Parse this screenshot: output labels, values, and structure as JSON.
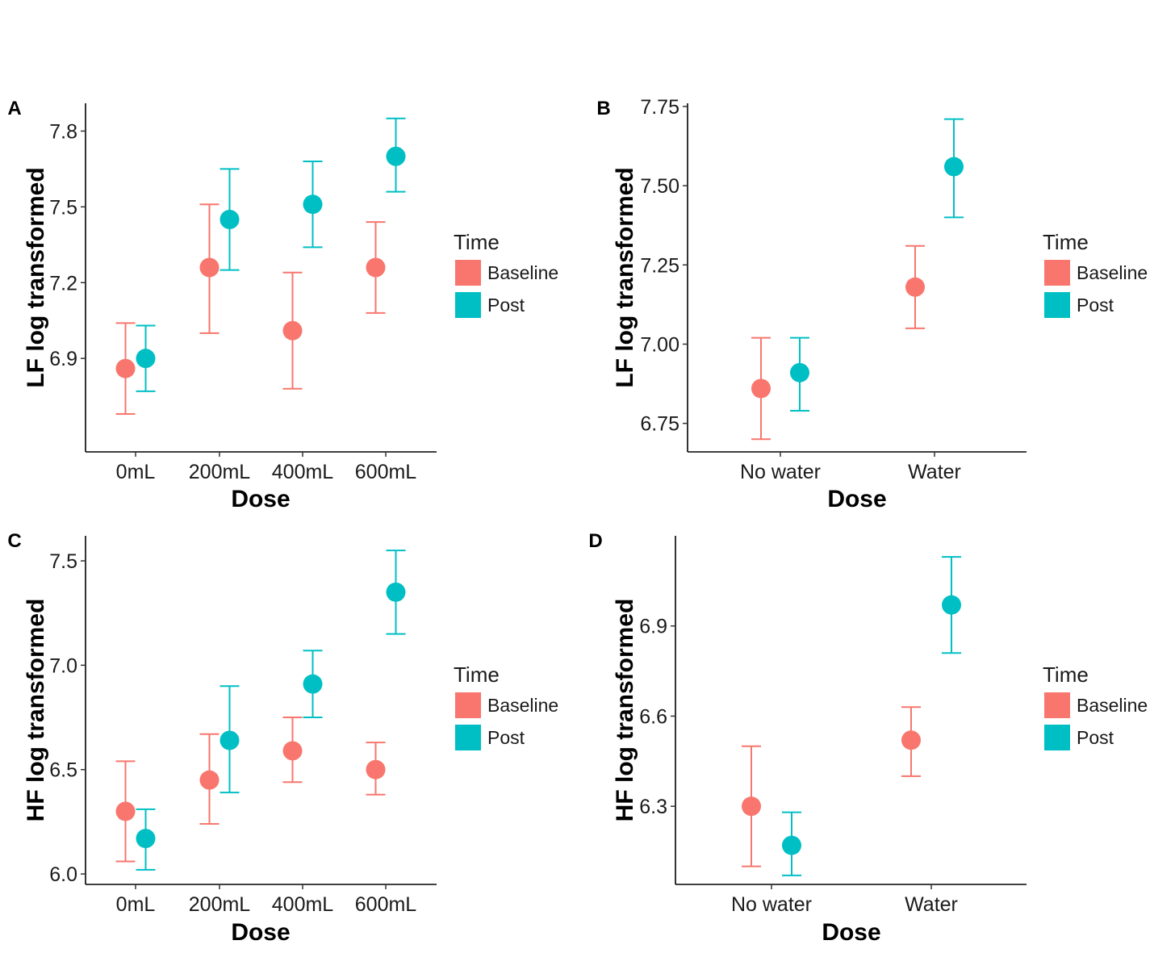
{
  "legend": {
    "title": "Time",
    "entries": [
      {
        "label": "Baseline",
        "color": "#F8766D"
      },
      {
        "label": "Post",
        "color": "#00BFC4"
      }
    ]
  },
  "chart_data": [
    {
      "panel": "A",
      "type": "scatter",
      "xlabel": "Dose",
      "ylabel": "LF log transformed",
      "categories": [
        "0mL",
        "200mL",
        "400mL",
        "600mL"
      ],
      "ylim": [
        6.53,
        7.91
      ],
      "yticks": [
        6.9,
        7.2,
        7.5,
        7.8
      ],
      "ytick_labels": [
        "6.9",
        "7.2",
        "7.5",
        "7.8"
      ],
      "series": [
        {
          "name": "Baseline",
          "color": "#F8766D",
          "values": [
            6.86,
            7.26,
            7.01,
            7.26
          ],
          "lower": [
            6.68,
            7.0,
            6.78,
            7.08
          ],
          "upper": [
            7.04,
            7.51,
            7.24,
            7.44
          ]
        },
        {
          "name": "Post",
          "color": "#00BFC4",
          "values": [
            6.9,
            7.45,
            7.51,
            7.7
          ],
          "lower": [
            6.77,
            7.25,
            7.34,
            7.56
          ],
          "upper": [
            7.03,
            7.65,
            7.68,
            7.85
          ]
        }
      ]
    },
    {
      "panel": "B",
      "type": "scatter",
      "xlabel": "Dose",
      "ylabel": "LF log transformed",
      "categories": [
        "No water",
        "Water"
      ],
      "ylim": [
        6.66,
        7.76
      ],
      "yticks": [
        6.75,
        7.0,
        7.25,
        7.5,
        7.75
      ],
      "ytick_labels": [
        "6.75",
        "7.00",
        "7.25",
        "7.50",
        "7.75"
      ],
      "series": [
        {
          "name": "Baseline",
          "color": "#F8766D",
          "values": [
            6.86,
            7.18
          ],
          "lower": [
            6.7,
            7.05
          ],
          "upper": [
            7.02,
            7.31
          ]
        },
        {
          "name": "Post",
          "color": "#00BFC4",
          "values": [
            6.91,
            7.56
          ],
          "lower": [
            6.79,
            7.4
          ],
          "upper": [
            7.02,
            7.71
          ]
        }
      ]
    },
    {
      "panel": "C",
      "type": "scatter",
      "xlabel": "Dose",
      "ylabel": "HF log transformed",
      "categories": [
        "0mL",
        "200mL",
        "400mL",
        "600mL"
      ],
      "ylim": [
        5.95,
        7.62
      ],
      "yticks": [
        6.0,
        6.5,
        7.0,
        7.5
      ],
      "ytick_labels": [
        "6.0",
        "6.5",
        "7.0",
        "7.5"
      ],
      "series": [
        {
          "name": "Baseline",
          "color": "#F8766D",
          "values": [
            6.3,
            6.45,
            6.59,
            6.5
          ],
          "lower": [
            6.06,
            6.24,
            6.44,
            6.38
          ],
          "upper": [
            6.54,
            6.67,
            6.75,
            6.63
          ]
        },
        {
          "name": "Post",
          "color": "#00BFC4",
          "values": [
            6.17,
            6.64,
            6.91,
            7.35
          ],
          "lower": [
            6.02,
            6.39,
            6.75,
            7.15
          ],
          "upper": [
            6.31,
            6.9,
            7.07,
            7.55
          ]
        }
      ]
    },
    {
      "panel": "D",
      "type": "scatter",
      "xlabel": "Dose",
      "ylabel": "HF log transformed",
      "categories": [
        "No water",
        "Water"
      ],
      "ylim": [
        6.04,
        7.2
      ],
      "yticks": [
        6.3,
        6.6,
        6.9
      ],
      "ytick_labels": [
        "6.3",
        "6.6",
        "6.9"
      ],
      "series": [
        {
          "name": "Baseline",
          "color": "#F8766D",
          "values": [
            6.3,
            6.52
          ],
          "lower": [
            6.1,
            6.4
          ],
          "upper": [
            6.5,
            6.63
          ]
        },
        {
          "name": "Post",
          "color": "#00BFC4",
          "values": [
            6.17,
            6.97
          ],
          "lower": [
            6.07,
            6.81
          ],
          "upper": [
            6.28,
            7.13
          ]
        }
      ]
    }
  ]
}
